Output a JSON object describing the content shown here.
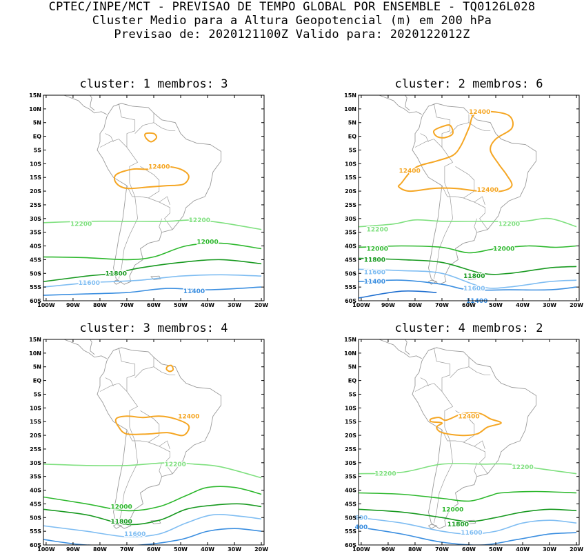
{
  "header": {
    "line1": "CPTEC/INPE/MCT - PREVISAO DE TEMPO GLOBAL POR ENSEMBLE - TQ0126L028",
    "line2": "Cluster Medio para a Altura Geopotencial (m) em 200 hPa",
    "line3": "Previsao de: 2020121100Z   Valido para: 2020122012Z"
  },
  "axes": {
    "lat_labels": [
      "15N",
      "10N",
      "5N",
      "EQ",
      "5S",
      "10S",
      "15S",
      "20S",
      "25S",
      "30S",
      "35S",
      "40S",
      "45S",
      "50S",
      "55S",
      "60S"
    ],
    "lon_labels": [
      "100W",
      "90W",
      "80W",
      "70W",
      "60W",
      "50W",
      "40W",
      "30W",
      "20W"
    ]
  },
  "colors": {
    "12400": "#f5a623",
    "12200": "#7fe07f",
    "12000": "#2db82d",
    "11800": "#17991f",
    "11600": "#7fbdf2",
    "11400": "#3a8ee0",
    "coast": "#9a9a9a"
  },
  "panels": [
    {
      "title": "cluster:  1   membros:  3",
      "labels": [
        {
          "text": "12400",
          "color": "12400"
        },
        {
          "text": "12200",
          "color": "12200"
        },
        {
          "text": "12200",
          "color": "12200"
        },
        {
          "text": "12000",
          "color": "12000"
        },
        {
          "text": "11800",
          "color": "11800"
        },
        {
          "text": "11600",
          "color": "11600"
        },
        {
          "text": "11400",
          "color": "11400"
        }
      ]
    },
    {
      "title": "cluster:  2   membros:  6",
      "labels": [
        {
          "text": "12400",
          "color": "12400"
        },
        {
          "text": "12400",
          "color": "12400"
        },
        {
          "text": "12400",
          "color": "12400"
        },
        {
          "text": "12200",
          "color": "12200"
        },
        {
          "text": "12200",
          "color": "12200"
        },
        {
          "text": "12000",
          "color": "12000"
        },
        {
          "text": "12000",
          "color": "12000"
        },
        {
          "text": "11800",
          "color": "11800"
        },
        {
          "text": "11800",
          "color": "11800"
        },
        {
          "text": "11600",
          "color": "11600"
        },
        {
          "text": "11600",
          "color": "11600"
        },
        {
          "text": "11400",
          "color": "11400"
        },
        {
          "text": "11400",
          "color": "11400"
        }
      ]
    },
    {
      "title": "cluster:  3   membros:  4",
      "labels": [
        {
          "text": "12400",
          "color": "12400"
        },
        {
          "text": "12200",
          "color": "12200"
        },
        {
          "text": "12000",
          "color": "12000"
        },
        {
          "text": "11800",
          "color": "11800"
        },
        {
          "text": "11600",
          "color": "11600"
        }
      ]
    },
    {
      "title": "cluster:  4   membros:  2",
      "labels": [
        {
          "text": "12400",
          "color": "12400"
        },
        {
          "text": "12200",
          "color": "12200"
        },
        {
          "text": "12200",
          "color": "12200"
        },
        {
          "text": "12000",
          "color": "12000"
        },
        {
          "text": "11800",
          "color": "11800"
        },
        {
          "text": "600",
          "color": "11600"
        },
        {
          "text": "11600",
          "color": "11600"
        },
        {
          "text": "400",
          "color": "11400"
        }
      ]
    }
  ]
}
